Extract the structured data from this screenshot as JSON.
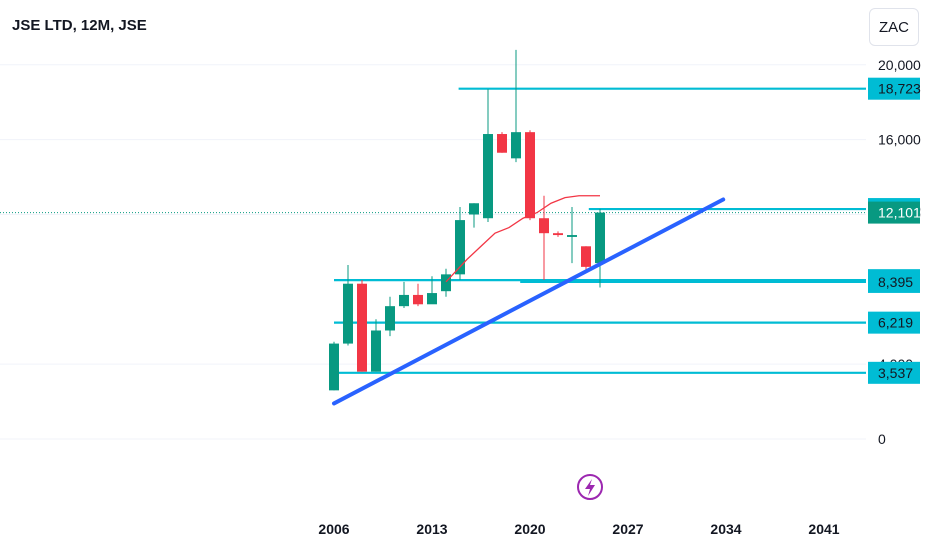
{
  "header": {
    "title": "JSE LTD, 12M, JSE",
    "currency_button": "ZAC"
  },
  "colors": {
    "up": "#089981",
    "down": "#f23645",
    "level_line": "#00bcd4",
    "trend_line": "#2962ff",
    "ma_line": "#f23645",
    "logo": "#9c27b0",
    "last_price_bg": "#089981",
    "level_label_bg": "#00bcd4"
  },
  "chart_data": {
    "type": "candlestick",
    "y_scale": "linear",
    "ylim": [
      0,
      21000
    ],
    "y_ticks": [
      {
        "value": 0,
        "label": "0"
      },
      {
        "value": 4000,
        "label": "4,000"
      },
      {
        "value": 12000,
        "label": "12,000"
      },
      {
        "value": 16000,
        "label": "16,000"
      },
      {
        "value": 20000,
        "label": "20,000"
      }
    ],
    "x_ticks": [
      "2006",
      "2013",
      "2020",
      "2027",
      "2034",
      "2041"
    ],
    "x_tick_years": [
      2006,
      2013,
      2020,
      2027,
      2034,
      2041
    ],
    "candles": [
      {
        "year": 2006,
        "open": 2600,
        "high": 5200,
        "low": 2600,
        "close": 5100
      },
      {
        "year": 2007,
        "open": 5100,
        "high": 9300,
        "low": 5000,
        "close": 8300
      },
      {
        "year": 2008,
        "open": 8300,
        "high": 8500,
        "low": 3600,
        "close": 3600
      },
      {
        "year": 2009,
        "open": 3600,
        "high": 6400,
        "low": 3600,
        "close": 5800
      },
      {
        "year": 2010,
        "open": 5800,
        "high": 7600,
        "low": 5500,
        "close": 7100
      },
      {
        "year": 2011,
        "open": 7100,
        "high": 8400,
        "low": 7000,
        "close": 7700
      },
      {
        "year": 2012,
        "open": 7700,
        "high": 8300,
        "low": 7100,
        "close": 7200
      },
      {
        "year": 2013,
        "open": 7200,
        "high": 8700,
        "low": 7300,
        "close": 7800
      },
      {
        "year": 2014,
        "open": 7900,
        "high": 9100,
        "low": 7600,
        "close": 8800
      },
      {
        "year": 2015,
        "open": 8800,
        "high": 12400,
        "low": 8500,
        "close": 11700
      },
      {
        "year": 2016,
        "open": 12000,
        "high": 12600,
        "low": 11300,
        "close": 12600
      },
      {
        "year": 2017,
        "open": 11800,
        "high": 18700,
        "low": 11600,
        "close": 16300
      },
      {
        "year": 2018,
        "open": 16300,
        "high": 16400,
        "low": 15300,
        "close": 15300
      },
      {
        "year": 2019,
        "open": 15000,
        "high": 20800,
        "low": 14800,
        "close": 16400
      },
      {
        "year": 2020,
        "open": 16400,
        "high": 16500,
        "low": 11700,
        "close": 11800
      },
      {
        "year": 2021,
        "open": 11800,
        "high": 13000,
        "low": 8500,
        "close": 11000
      },
      {
        "year": 2022,
        "open": 11000,
        "high": 11100,
        "low": 10800,
        "close": 10900
      },
      {
        "year": 2023,
        "open": 10800,
        "high": 12400,
        "low": 9400,
        "close": 10900
      },
      {
        "year": 2024,
        "open": 10300,
        "high": 10300,
        "low": 8900,
        "close": 9200
      },
      {
        "year": 2025,
        "open": 9400,
        "high": 12300,
        "low": 8100,
        "close": 12101
      }
    ],
    "moving_average": {
      "points": [
        {
          "year": 2014,
          "value": 8400
        },
        {
          "year": 2015.5,
          "value": 9600
        },
        {
          "year": 2016.5,
          "value": 10300
        },
        {
          "year": 2017.5,
          "value": 11000
        },
        {
          "year": 2018.5,
          "value": 11300
        },
        {
          "year": 2019.5,
          "value": 11800
        },
        {
          "year": 2020.5,
          "value": 12100
        },
        {
          "year": 2021.5,
          "value": 12600
        },
        {
          "year": 2022.5,
          "value": 12900
        },
        {
          "year": 2023.5,
          "value": 13000
        },
        {
          "year": 2025,
          "value": 13000
        }
      ]
    },
    "trend_line": {
      "from": {
        "year": 2006,
        "value": 1900
      },
      "to": {
        "year": 2033.8,
        "value": 12800
      }
    },
    "horizontal_levels": [
      {
        "value": 18723,
        "label": "18,723",
        "from_year": 2014.9
      },
      {
        "value": 12290,
        "label": "12,290",
        "from_year": 2024.2
      },
      {
        "value": 8490,
        "label": "8,490",
        "from_year": 2006
      },
      {
        "value": 8395,
        "label": "8,395",
        "from_year": 2019.3
      },
      {
        "value": 6219,
        "label": "6,219",
        "from_year": 2006
      },
      {
        "value": 3537,
        "label": "3,537",
        "from_year": 2006
      }
    ],
    "last_price": {
      "value": 12101,
      "label": "12,101"
    }
  }
}
